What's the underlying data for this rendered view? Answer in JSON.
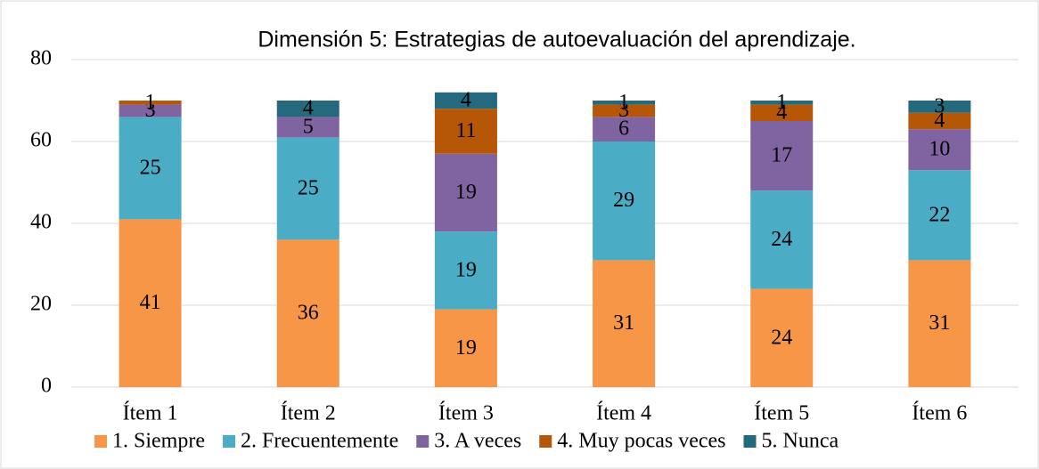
{
  "chart_data": {
    "type": "stacked_bar",
    "title": "Dimensión 5: Estrategias de autoevaluación del aprendizaje.",
    "categories": [
      "Ítem 1",
      "Ítem 2",
      "Ítem 3",
      "Ítem 4",
      "Ítem 5",
      "Ítem 6"
    ],
    "series": [
      {
        "name": "1. Siempre",
        "color": "#f79646",
        "values": [
          41,
          36,
          19,
          31,
          24,
          31
        ]
      },
      {
        "name": "2. Frecuentemente",
        "color": "#4bacc6",
        "values": [
          25,
          25,
          19,
          29,
          24,
          22
        ]
      },
      {
        "name": "3. A veces",
        "color": "#8064a2",
        "values": [
          3,
          5,
          19,
          6,
          17,
          10
        ]
      },
      {
        "name": "4. Muy pocas veces",
        "color": "#b65708",
        "values": [
          1,
          null,
          11,
          3,
          4,
          4
        ]
      },
      {
        "name": "5. Nunca",
        "color": "#256a7c",
        "values": [
          null,
          4,
          4,
          1,
          1,
          3
        ]
      }
    ],
    "ylim": [
      0,
      80
    ],
    "yticks": [
      0,
      20,
      40,
      60,
      80
    ],
    "grid": true,
    "legend": "bottom"
  }
}
